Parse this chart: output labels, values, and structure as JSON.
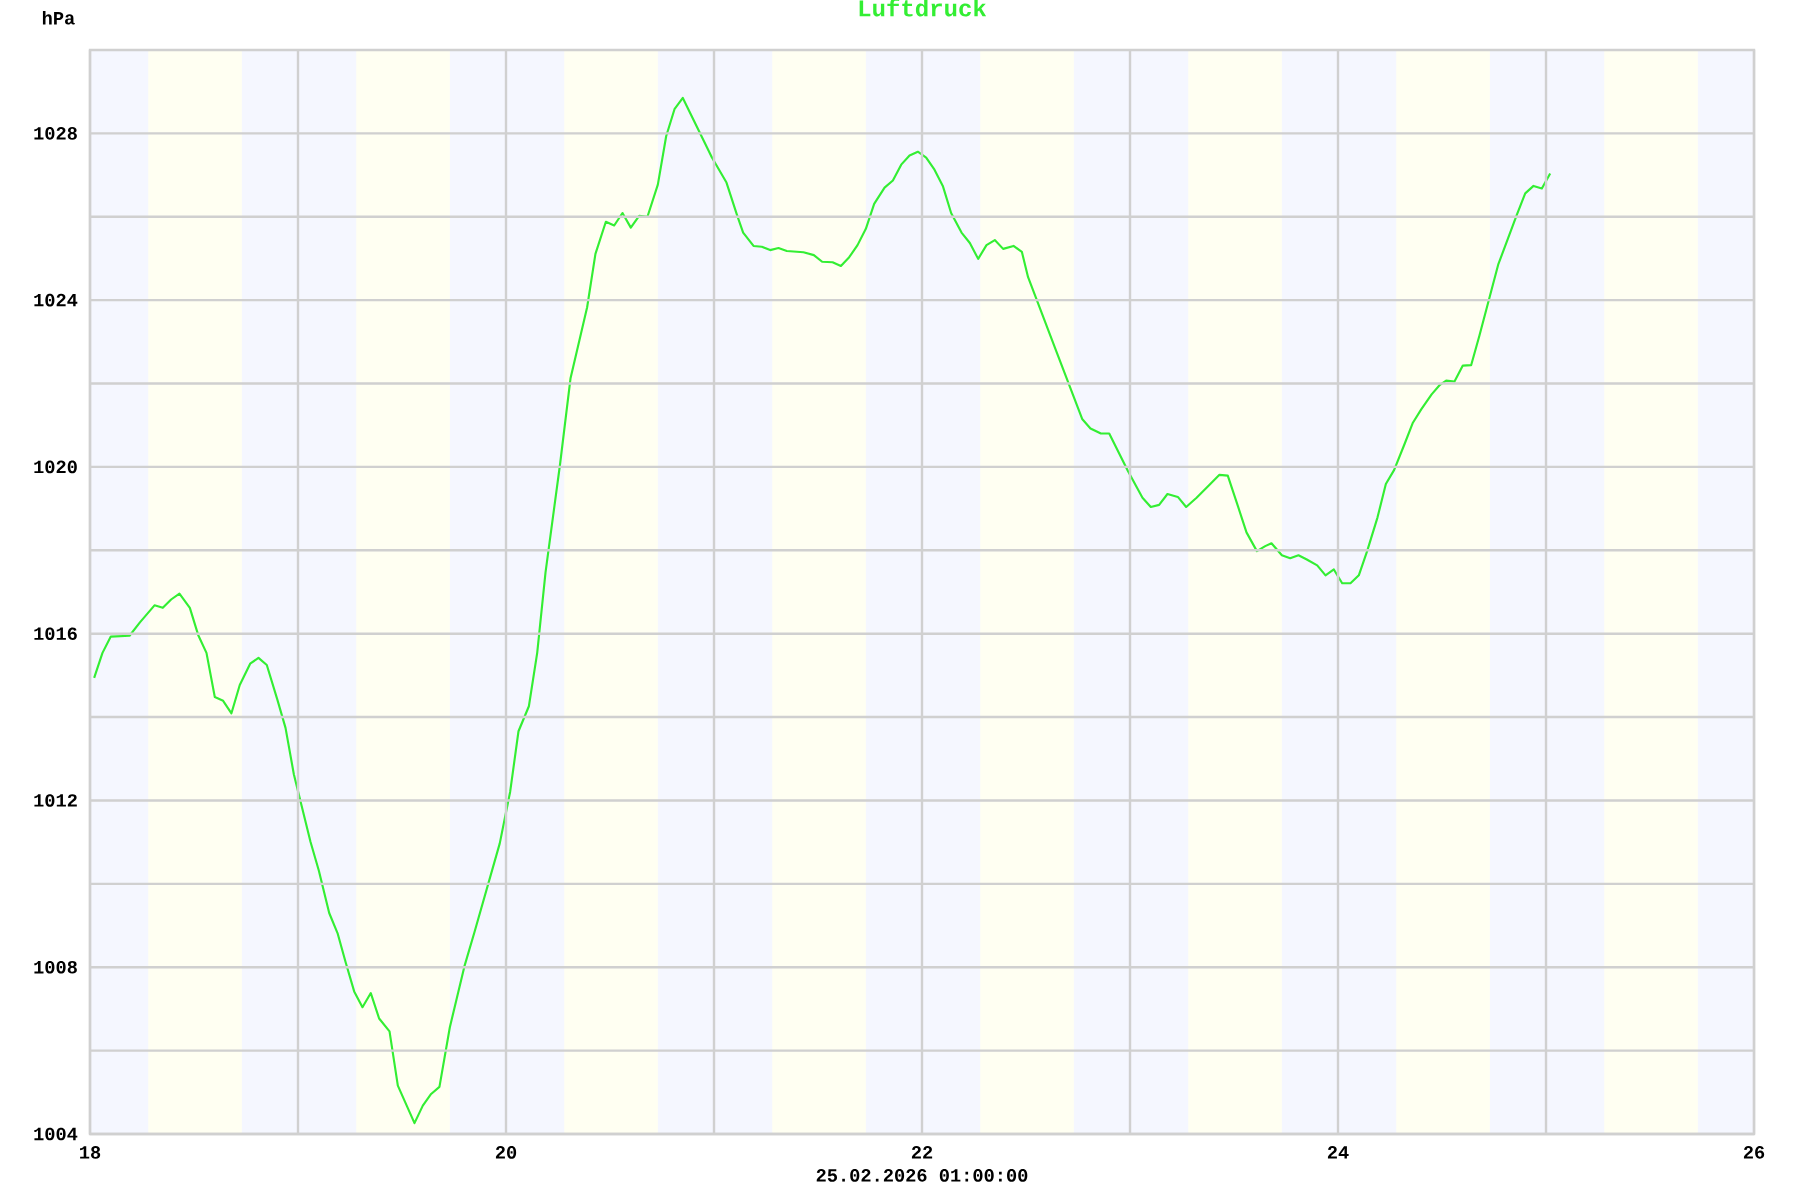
{
  "chart_data": {
    "type": "line",
    "title": "Luftdruck",
    "xlabel": "25.02.2026 01:00:00",
    "ylabel": "hPa",
    "xlim": [
      18,
      26
    ],
    "ylim": [
      1004,
      1030
    ],
    "xticks": [
      18,
      {
        "value": 19,
        "label": null
      },
      20,
      {
        "value": 21,
        "label": null
      },
      22,
      {
        "value": 23,
        "label": null
      },
      24,
      {
        "value": 25,
        "label": null
      },
      26
    ],
    "yticks": [
      1004,
      {
        "value": 1006,
        "label": null
      },
      1008,
      {
        "value": 1010,
        "label": null
      },
      1012,
      {
        "value": 1014,
        "label": null
      },
      1016,
      {
        "value": 1018,
        "label": null
      },
      1020,
      {
        "value": 1022,
        "label": null
      },
      1024,
      {
        "value": 1026,
        "label": null
      },
      1028
    ],
    "grid": true,
    "line_style": "solid",
    "bands": [
      {
        "axis": "x",
        "from": 18.28,
        "to": 18.73,
        "color": "#fffff2"
      },
      {
        "axis": "x",
        "from": 19.28,
        "to": 19.73,
        "color": "#fffff2"
      },
      {
        "axis": "x",
        "from": 20.28,
        "to": 20.73,
        "color": "#fffff2"
      },
      {
        "axis": "x",
        "from": 21.28,
        "to": 21.73,
        "color": "#fffff2"
      },
      {
        "axis": "x",
        "from": 22.28,
        "to": 22.73,
        "color": "#fffff2"
      },
      {
        "axis": "x",
        "from": 23.28,
        "to": 23.73,
        "color": "#fffff2"
      },
      {
        "axis": "x",
        "from": 24.28,
        "to": 24.73,
        "color": "#fffff2"
      },
      {
        "axis": "x",
        "from": 25.28,
        "to": 25.73,
        "color": "#fffff2"
      }
    ],
    "series": [
      {
        "color": "#33ee33",
        "x": [
          18.02,
          18.06,
          18.1,
          18.19,
          18.24,
          18.31,
          18.35,
          18.39,
          18.43,
          18.48,
          18.52,
          18.56,
          18.6,
          18.64,
          18.68,
          18.72,
          18.77,
          18.81,
          18.85,
          18.9,
          18.94,
          18.98,
          19.06,
          19.1,
          19.15,
          19.19,
          19.23,
          19.27,
          19.31,
          19.35,
          19.39,
          19.44,
          19.48,
          19.56,
          19.6,
          19.64,
          19.68,
          19.73,
          19.8,
          19.85,
          19.97,
          20.02,
          20.06,
          20.11,
          20.15,
          20.19,
          20.26,
          20.31,
          20.39,
          20.43,
          20.48,
          20.52,
          20.56,
          20.6,
          20.64,
          20.68,
          20.73,
          20.77,
          20.81,
          20.85,
          20.99,
          21.06,
          21.11,
          21.14,
          21.19,
          21.23,
          21.27,
          21.31,
          21.35,
          21.43,
          21.48,
          21.52,
          21.57,
          21.61,
          21.65,
          21.69,
          21.73,
          21.77,
          21.82,
          21.86,
          21.9,
          21.94,
          21.98,
          22.02,
          22.06,
          22.1,
          22.14,
          22.19,
          22.23,
          22.27,
          22.31,
          22.35,
          22.39,
          22.44,
          22.48,
          22.51,
          22.65,
          22.77,
          22.81,
          22.86,
          22.9,
          22.99,
          23.06,
          23.1,
          23.14,
          23.18,
          23.23,
          23.27,
          23.32,
          23.38,
          23.43,
          23.47,
          23.52,
          23.56,
          23.61,
          23.65,
          23.68,
          23.73,
          23.77,
          23.81,
          23.85,
          23.9,
          23.94,
          23.98,
          24.02,
          24.06,
          24.1,
          24.14,
          24.19,
          24.23,
          24.27,
          24.32,
          24.36,
          24.4,
          24.45,
          24.49,
          24.52,
          24.56,
          24.6,
          24.64,
          24.68,
          24.77,
          24.86,
          24.9,
          24.94,
          24.98,
          25.02
        ],
        "values": [
          1014.94,
          1015.54,
          1015.93,
          1015.95,
          1016.27,
          1016.68,
          1016.62,
          1016.82,
          1016.96,
          1016.62,
          1015.97,
          1015.54,
          1014.48,
          1014.39,
          1014.09,
          1014.77,
          1015.28,
          1015.42,
          1015.25,
          1014.43,
          1013.74,
          1012.63,
          1011.01,
          1010.32,
          1009.3,
          1008.82,
          1008.1,
          1007.42,
          1007.04,
          1007.38,
          1006.77,
          1006.46,
          1005.16,
          1004.26,
          1004.68,
          1004.96,
          1005.13,
          1006.56,
          1008.02,
          1008.87,
          1010.97,
          1012.21,
          1013.66,
          1014.26,
          1015.54,
          1017.47,
          1020.07,
          1022.12,
          1023.83,
          1025.11,
          1025.88,
          1025.79,
          1026.09,
          1025.74,
          1026.02,
          1026.0,
          1026.77,
          1027.93,
          1028.58,
          1028.85,
          1027.42,
          1026.82,
          1026.05,
          1025.62,
          1025.3,
          1025.28,
          1025.2,
          1025.25,
          1025.18,
          1025.15,
          1025.08,
          1024.92,
          1024.91,
          1024.82,
          1025.03,
          1025.32,
          1025.71,
          1026.31,
          1026.7,
          1026.87,
          1027.25,
          1027.47,
          1027.56,
          1027.42,
          1027.13,
          1026.74,
          1026.09,
          1025.62,
          1025.37,
          1024.99,
          1025.32,
          1025.44,
          1025.23,
          1025.3,
          1025.16,
          1024.55,
          1022.72,
          1021.15,
          1020.92,
          1020.8,
          1020.8,
          1019.9,
          1019.26,
          1019.04,
          1019.09,
          1019.35,
          1019.28,
          1019.04,
          1019.26,
          1019.56,
          1019.81,
          1019.79,
          1019.04,
          1018.43,
          1017.98,
          1018.1,
          1018.17,
          1017.88,
          1017.81,
          1017.88,
          1017.78,
          1017.64,
          1017.4,
          1017.54,
          1017.21,
          1017.21,
          1017.4,
          1017.98,
          1018.79,
          1019.59,
          1019.93,
          1020.55,
          1021.06,
          1021.38,
          1021.74,
          1021.97,
          1022.07,
          1022.05,
          1022.43,
          1022.44,
          1023.15,
          1024.85,
          1026.05,
          1026.56,
          1026.74,
          1026.68,
          1027.04
        ]
      }
    ]
  }
}
